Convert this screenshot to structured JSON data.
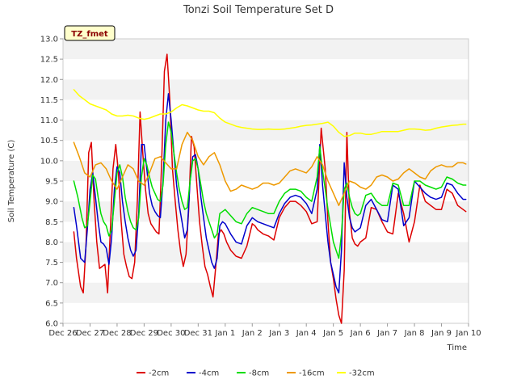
{
  "chart_data": {
    "type": "line",
    "title": "Tonzi Soil Temperature Set D",
    "xlabel": "Time",
    "ylabel": "Soil Temperature (C)",
    "site_tag": "TZ_fmet",
    "xlim": [
      0,
      15
    ],
    "ylim": [
      6.0,
      13.0
    ],
    "x_ticks": [
      0,
      1,
      2,
      3,
      4,
      5,
      6,
      7,
      8,
      9,
      10,
      11,
      12,
      13,
      14,
      15
    ],
    "x_tick_labels": [
      "Dec 26",
      "Dec 27",
      "Dec 28",
      "Dec 29",
      "Dec 30",
      "Dec 31",
      "Jan 1",
      "Jan 2",
      "Jan 3",
      "Jan 4",
      "Jan 5",
      "Jan 6",
      "Jan 7",
      "Jan 8",
      "Jan 9",
      "Jan 10"
    ],
    "y_ticks": [
      6.0,
      6.5,
      7.0,
      7.5,
      8.0,
      8.5,
      9.0,
      9.5,
      10.0,
      10.5,
      11.0,
      11.5,
      12.0,
      12.5,
      13.0
    ],
    "y_tick_labels": [
      "6.0",
      "6.5",
      "7.0",
      "7.5",
      "8.0",
      "8.5",
      "9.0",
      "9.5",
      "10.0",
      "10.5",
      "11.0",
      "11.5",
      "12.0",
      "12.5",
      "13.0"
    ],
    "grid": "horizontal bands",
    "legend_position": "bottom-center",
    "series": [
      {
        "name": "-2cm",
        "color": "#dd0000",
        "x": [
          0.4,
          0.5,
          0.65,
          0.75,
          0.85,
          0.95,
          1.05,
          1.15,
          1.25,
          1.35,
          1.45,
          1.55,
          1.65,
          1.75,
          1.85,
          1.95,
          2.05,
          2.15,
          2.25,
          2.35,
          2.45,
          2.55,
          2.65,
          2.75,
          2.85,
          2.95,
          3.05,
          3.15,
          3.25,
          3.35,
          3.45,
          3.55,
          3.65,
          3.75,
          3.85,
          3.95,
          4.05,
          4.15,
          4.25,
          4.35,
          4.45,
          4.55,
          4.65,
          4.75,
          4.85,
          4.95,
          5.05,
          5.15,
          5.25,
          5.35,
          5.45,
          5.55,
          5.65,
          5.75,
          5.85,
          5.95,
          6.05,
          6.2,
          6.4,
          6.6,
          6.8,
          7.0,
          7.1,
          7.2,
          7.4,
          7.6,
          7.8,
          8.0,
          8.2,
          8.4,
          8.6,
          8.8,
          9.0,
          9.2,
          9.4,
          9.55,
          9.7,
          9.8,
          9.9,
          10.0,
          10.1,
          10.2,
          10.3,
          10.4,
          10.5,
          10.6,
          10.7,
          10.8,
          10.9,
          11.0,
          11.2,
          11.4,
          11.6,
          11.8,
          12.0,
          12.2,
          12.4,
          12.6,
          12.8,
          13.0,
          13.2,
          13.4,
          13.6,
          13.8,
          14.0,
          14.2,
          14.4,
          14.6,
          14.8,
          14.9
        ],
        "values": [
          8.25,
          7.6,
          6.9,
          6.75,
          7.9,
          10.2,
          10.45,
          9.0,
          8.0,
          7.35,
          7.4,
          7.45,
          6.75,
          8.3,
          9.8,
          10.4,
          9.7,
          8.5,
          7.7,
          7.4,
          7.15,
          7.1,
          7.5,
          9.0,
          11.2,
          10.2,
          9.3,
          8.7,
          8.45,
          8.35,
          8.25,
          8.2,
          10.0,
          12.2,
          12.62,
          11.5,
          9.8,
          9.0,
          8.3,
          7.75,
          7.4,
          7.7,
          8.8,
          10.6,
          10.35,
          9.4,
          8.5,
          7.9,
          7.4,
          7.2,
          6.9,
          6.65,
          7.4,
          8.2,
          8.3,
          8.2,
          8.0,
          7.8,
          7.65,
          7.6,
          7.9,
          8.45,
          8.4,
          8.3,
          8.2,
          8.15,
          8.05,
          8.6,
          8.85,
          9.0,
          9.0,
          8.9,
          8.75,
          8.45,
          8.5,
          10.8,
          9.8,
          8.5,
          7.5,
          7.1,
          6.6,
          6.2,
          6.0,
          7.3,
          10.7,
          8.7,
          8.1,
          7.95,
          7.9,
          8.0,
          8.1,
          8.85,
          8.8,
          8.5,
          8.25,
          8.2,
          9.2,
          8.7,
          8.0,
          8.5,
          9.4,
          9.0,
          8.9,
          8.8,
          8.8,
          9.3,
          9.2,
          8.9,
          8.8,
          8.75
        ]
      },
      {
        "name": "-4cm",
        "color": "#0000cc",
        "x": [
          0.4,
          0.5,
          0.65,
          0.8,
          0.9,
          1.0,
          1.1,
          1.2,
          1.3,
          1.4,
          1.5,
          1.6,
          1.7,
          1.8,
          1.9,
          2.0,
          2.1,
          2.2,
          2.3,
          2.4,
          2.5,
          2.6,
          2.7,
          2.8,
          2.9,
          3.0,
          3.1,
          3.2,
          3.3,
          3.4,
          3.5,
          3.6,
          3.7,
          3.8,
          3.9,
          4.0,
          4.1,
          4.2,
          4.3,
          4.4,
          4.5,
          4.6,
          4.7,
          4.8,
          4.9,
          5.0,
          5.1,
          5.2,
          5.3,
          5.4,
          5.5,
          5.6,
          5.7,
          5.8,
          5.9,
          6.0,
          6.2,
          6.4,
          6.6,
          6.8,
          7.0,
          7.2,
          7.4,
          7.6,
          7.8,
          8.0,
          8.2,
          8.4,
          8.6,
          8.8,
          9.0,
          9.2,
          9.4,
          9.5,
          9.6,
          9.7,
          9.8,
          9.9,
          10.0,
          10.1,
          10.2,
          10.3,
          10.4,
          10.5,
          10.6,
          10.7,
          10.8,
          10.9,
          11.0,
          11.2,
          11.4,
          11.6,
          11.8,
          12.0,
          12.2,
          12.4,
          12.6,
          12.8,
          13.0,
          13.2,
          13.4,
          13.6,
          13.8,
          14.0,
          14.2,
          14.4,
          14.6,
          14.8,
          14.9
        ],
        "values": [
          8.85,
          8.4,
          7.6,
          7.5,
          8.3,
          9.3,
          9.7,
          9.1,
          8.5,
          8.0,
          7.95,
          7.85,
          7.45,
          8.1,
          9.3,
          9.85,
          9.7,
          9.0,
          8.5,
          8.1,
          7.8,
          7.65,
          7.8,
          8.7,
          10.4,
          10.4,
          9.8,
          9.2,
          8.9,
          8.75,
          8.65,
          8.6,
          9.5,
          11.0,
          11.65,
          11.0,
          10.2,
          9.4,
          8.9,
          8.5,
          8.1,
          8.3,
          9.5,
          10.1,
          10.15,
          9.8,
          9.1,
          8.6,
          8.1,
          7.8,
          7.5,
          7.35,
          7.6,
          8.4,
          8.5,
          8.45,
          8.2,
          8.0,
          7.95,
          8.4,
          8.6,
          8.5,
          8.45,
          8.4,
          8.35,
          8.7,
          8.95,
          9.1,
          9.15,
          9.1,
          8.95,
          8.7,
          9.3,
          10.4,
          9.4,
          8.7,
          8.0,
          7.5,
          7.2,
          6.9,
          6.75,
          7.8,
          9.95,
          9.1,
          8.6,
          8.35,
          8.25,
          8.3,
          8.35,
          8.9,
          9.05,
          8.8,
          8.55,
          8.5,
          9.4,
          9.3,
          8.4,
          8.6,
          9.5,
          9.35,
          9.2,
          9.1,
          9.05,
          9.1,
          9.45,
          9.4,
          9.2,
          9.05,
          9.05
        ]
      },
      {
        "name": "-8cm",
        "color": "#00dd00",
        "x": [
          0.4,
          0.55,
          0.7,
          0.8,
          0.9,
          1.0,
          1.1,
          1.2,
          1.3,
          1.4,
          1.5,
          1.6,
          1.7,
          1.8,
          1.9,
          2.0,
          2.1,
          2.2,
          2.3,
          2.4,
          2.5,
          2.6,
          2.7,
          2.8,
          2.9,
          3.0,
          3.1,
          3.2,
          3.3,
          3.4,
          3.5,
          3.6,
          3.7,
          3.8,
          3.9,
          4.0,
          4.1,
          4.2,
          4.3,
          4.4,
          4.5,
          4.6,
          4.7,
          4.8,
          4.9,
          5.0,
          5.1,
          5.2,
          5.3,
          5.4,
          5.5,
          5.6,
          5.7,
          5.8,
          5.9,
          6.0,
          6.2,
          6.4,
          6.6,
          6.8,
          7.0,
          7.2,
          7.4,
          7.6,
          7.8,
          8.0,
          8.2,
          8.4,
          8.6,
          8.8,
          9.0,
          9.2,
          9.4,
          9.5,
          9.6,
          9.7,
          9.8,
          9.9,
          10.0,
          10.1,
          10.2,
          10.3,
          10.4,
          10.5,
          10.6,
          10.7,
          10.8,
          10.9,
          11.0,
          11.2,
          11.4,
          11.6,
          11.8,
          12.0,
          12.2,
          12.4,
          12.6,
          12.8,
          13.0,
          13.2,
          13.4,
          13.6,
          13.8,
          14.0,
          14.2,
          14.4,
          14.6,
          14.8,
          14.9
        ],
        "values": [
          9.5,
          9.1,
          8.6,
          8.35,
          8.4,
          9.0,
          9.65,
          9.55,
          9.1,
          8.7,
          8.5,
          8.4,
          8.15,
          8.3,
          9.0,
          9.7,
          9.9,
          9.6,
          9.1,
          8.75,
          8.5,
          8.35,
          8.3,
          8.6,
          9.6,
          10.05,
          9.9,
          9.6,
          9.35,
          9.2,
          9.05,
          9.0,
          9.4,
          10.4,
          10.95,
          10.7,
          10.2,
          9.7,
          9.3,
          9.0,
          8.8,
          8.85,
          9.5,
          10.0,
          10.05,
          9.8,
          9.4,
          9.0,
          8.7,
          8.5,
          8.3,
          8.1,
          8.2,
          8.7,
          8.75,
          8.8,
          8.65,
          8.5,
          8.45,
          8.7,
          8.85,
          8.8,
          8.75,
          8.7,
          8.7,
          9.0,
          9.2,
          9.3,
          9.3,
          9.25,
          9.1,
          9.0,
          9.6,
          10.35,
          9.75,
          9.3,
          8.8,
          8.4,
          8.0,
          7.8,
          7.6,
          8.2,
          9.3,
          9.45,
          9.1,
          8.85,
          8.7,
          8.65,
          8.7,
          9.15,
          9.2,
          9.0,
          8.9,
          8.9,
          9.45,
          9.4,
          8.9,
          8.9,
          9.5,
          9.5,
          9.4,
          9.35,
          9.3,
          9.35,
          9.6,
          9.55,
          9.45,
          9.4,
          9.4
        ]
      },
      {
        "name": "-16cm",
        "color": "#ee9900",
        "x": [
          0.4,
          0.6,
          0.8,
          1.0,
          1.2,
          1.4,
          1.6,
          1.8,
          2.0,
          2.2,
          2.4,
          2.6,
          2.8,
          3.0,
          3.2,
          3.4,
          3.6,
          3.8,
          4.0,
          4.2,
          4.4,
          4.6,
          4.8,
          5.0,
          5.2,
          5.4,
          5.6,
          5.8,
          6.0,
          6.2,
          6.4,
          6.6,
          6.8,
          7.0,
          7.2,
          7.4,
          7.6,
          7.8,
          8.0,
          8.2,
          8.4,
          8.6,
          8.8,
          9.0,
          9.2,
          9.4,
          9.6,
          9.8,
          10.0,
          10.2,
          10.4,
          10.6,
          10.8,
          11.0,
          11.2,
          11.4,
          11.6,
          11.8,
          12.0,
          12.2,
          12.4,
          12.6,
          12.8,
          13.0,
          13.2,
          13.4,
          13.6,
          13.8,
          14.0,
          14.2,
          14.4,
          14.6,
          14.8,
          14.9
        ],
        "values": [
          10.45,
          10.1,
          9.7,
          9.6,
          9.9,
          9.95,
          9.8,
          9.5,
          9.3,
          9.6,
          9.9,
          9.8,
          9.5,
          9.4,
          9.7,
          10.05,
          10.1,
          9.95,
          9.8,
          9.8,
          10.4,
          10.7,
          10.5,
          10.1,
          9.9,
          10.1,
          10.2,
          9.9,
          9.5,
          9.25,
          9.3,
          9.4,
          9.35,
          9.3,
          9.35,
          9.45,
          9.45,
          9.4,
          9.45,
          9.6,
          9.75,
          9.8,
          9.75,
          9.7,
          9.85,
          10.1,
          9.9,
          9.5,
          9.2,
          8.9,
          9.2,
          9.5,
          9.45,
          9.35,
          9.3,
          9.4,
          9.6,
          9.65,
          9.6,
          9.5,
          9.55,
          9.7,
          9.8,
          9.7,
          9.6,
          9.55,
          9.75,
          9.85,
          9.9,
          9.85,
          9.85,
          9.95,
          9.95,
          9.92
        ]
      },
      {
        "name": "-32cm",
        "color": "#ffff00",
        "x": [
          0.4,
          0.6,
          0.8,
          1.0,
          1.2,
          1.4,
          1.6,
          1.8,
          2.0,
          2.2,
          2.4,
          2.6,
          2.8,
          3.0,
          3.2,
          3.4,
          3.6,
          3.8,
          4.0,
          4.2,
          4.4,
          4.6,
          4.8,
          5.0,
          5.2,
          5.4,
          5.6,
          5.8,
          6.0,
          6.2,
          6.4,
          6.6,
          6.8,
          7.0,
          7.2,
          7.4,
          7.6,
          7.8,
          8.0,
          8.2,
          8.4,
          8.6,
          8.8,
          9.0,
          9.2,
          9.4,
          9.6,
          9.8,
          10.0,
          10.2,
          10.4,
          10.6,
          10.8,
          11.0,
          11.2,
          11.4,
          11.6,
          11.8,
          12.0,
          12.2,
          12.4,
          12.6,
          12.8,
          13.0,
          13.2,
          13.4,
          13.6,
          13.8,
          14.0,
          14.2,
          14.4,
          14.6,
          14.8,
          14.9
        ],
        "values": [
          11.75,
          11.6,
          11.5,
          11.4,
          11.35,
          11.3,
          11.25,
          11.15,
          11.1,
          11.1,
          11.12,
          11.1,
          11.05,
          11.02,
          11.05,
          11.1,
          11.15,
          11.15,
          11.2,
          11.3,
          11.38,
          11.35,
          11.3,
          11.25,
          11.22,
          11.22,
          11.18,
          11.05,
          10.95,
          10.9,
          10.85,
          10.82,
          10.8,
          10.78,
          10.77,
          10.77,
          10.78,
          10.77,
          10.77,
          10.78,
          10.8,
          10.82,
          10.85,
          10.87,
          10.88,
          10.9,
          10.92,
          10.95,
          10.85,
          10.7,
          10.6,
          10.62,
          10.68,
          10.68,
          10.65,
          10.65,
          10.68,
          10.72,
          10.72,
          10.72,
          10.72,
          10.75,
          10.78,
          10.78,
          10.77,
          10.75,
          10.76,
          10.8,
          10.83,
          10.85,
          10.87,
          10.88,
          10.9,
          10.9
        ]
      }
    ]
  }
}
